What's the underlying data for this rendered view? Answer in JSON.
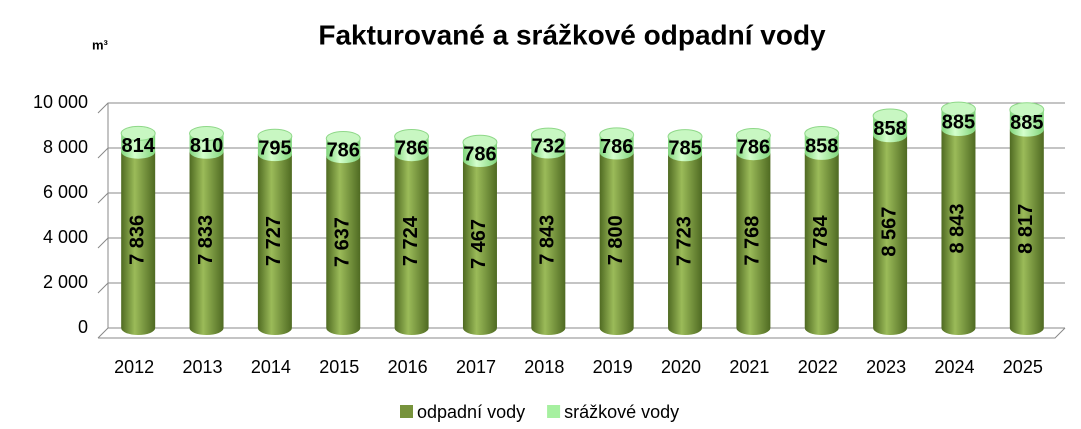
{
  "chart_data": {
    "type": "bar",
    "stacked": true,
    "title": "Fakturované a srážkové odpadní vody",
    "y_label": "m³",
    "categories": [
      "2012",
      "2013",
      "2014",
      "2015",
      "2016",
      "2017",
      "2018",
      "2019",
      "2020",
      "2021",
      "2022",
      "2023",
      "2024",
      "2025"
    ],
    "series": [
      {
        "name": "odpadní vody",
        "color": "#77933c",
        "values": [
          7836,
          7833,
          7727,
          7637,
          7724,
          7467,
          7843,
          7800,
          7723,
          7768,
          7784,
          8567,
          8843,
          8817
        ],
        "value_labels": [
          "7 836",
          "7 833",
          "7 727",
          "7 637",
          "7 724",
          "7 467",
          "7 843",
          "7 800",
          "7 723",
          "7 768",
          "7 784",
          "8 567",
          "8 843",
          "8 817"
        ]
      },
      {
        "name": "srážkové vody",
        "color": "#a6f0a0",
        "values": [
          814,
          810,
          795,
          786,
          786,
          786,
          732,
          786,
          785,
          786,
          858,
          858,
          885,
          885
        ]
      }
    ],
    "ylim": [
      0,
      10000
    ],
    "yticks": [
      0,
      {
        "value": 2000,
        "label": "2 000"
      },
      {
        "value": 4000,
        "label": "4 000"
      },
      {
        "value": 6000,
        "label": "6 000"
      },
      {
        "value": 8000,
        "label": "8 000"
      },
      {
        "value": 10000,
        "label": "10 000"
      }
    ],
    "grid": true,
    "legend": "bottom"
  }
}
